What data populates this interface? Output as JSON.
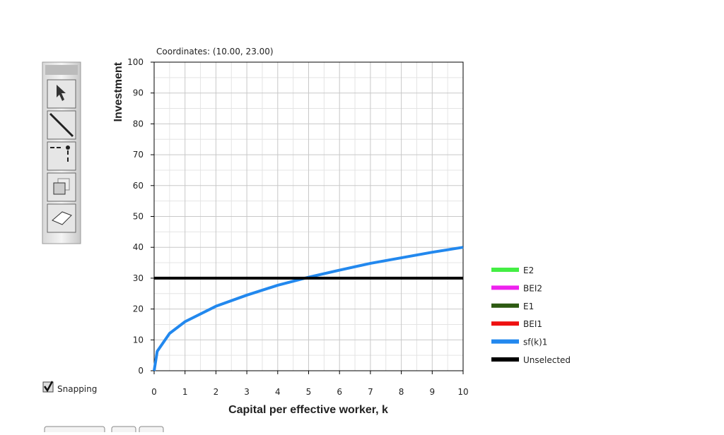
{
  "coordinates": "Coordinates: (10.00, 23.00)",
  "snapping": "Snapping",
  "chart_data": {
    "type": "line",
    "xlabel": "Capital per effective worker, k",
    "ylabel": "Investment",
    "xlim": [
      0,
      10
    ],
    "ylim": [
      0,
      100
    ],
    "xticks": [
      0,
      1,
      2,
      3,
      4,
      5,
      6,
      7,
      8,
      9,
      10
    ],
    "yticks": [
      0,
      10,
      20,
      30,
      40,
      50,
      60,
      70,
      80,
      90,
      100
    ],
    "grid": true,
    "legend": "right",
    "series": [
      {
        "name": "E2",
        "color": "#44ee44",
        "x": [],
        "values": []
      },
      {
        "name": "BEI2",
        "color": "#ee22ee",
        "x": [],
        "values": []
      },
      {
        "name": "E1",
        "color": "#2d5a12",
        "x": [],
        "values": []
      },
      {
        "name": "BEI1",
        "color": "#ee1111",
        "x": [],
        "values": []
      },
      {
        "name": "sf(k)1",
        "color": "#2288ee",
        "x": [
          0,
          0.1,
          0.5,
          1,
          2,
          3,
          4,
          5,
          6,
          7,
          8,
          9,
          10
        ],
        "values": [
          0,
          6.3,
          12.1,
          15.9,
          20.9,
          24.5,
          27.7,
          30.3,
          32.6,
          34.8,
          36.6,
          38.4,
          40
        ]
      },
      {
        "name": "Unselected",
        "color": "#000000",
        "x": [
          0,
          10
        ],
        "values": [
          30,
          30
        ]
      }
    ]
  }
}
